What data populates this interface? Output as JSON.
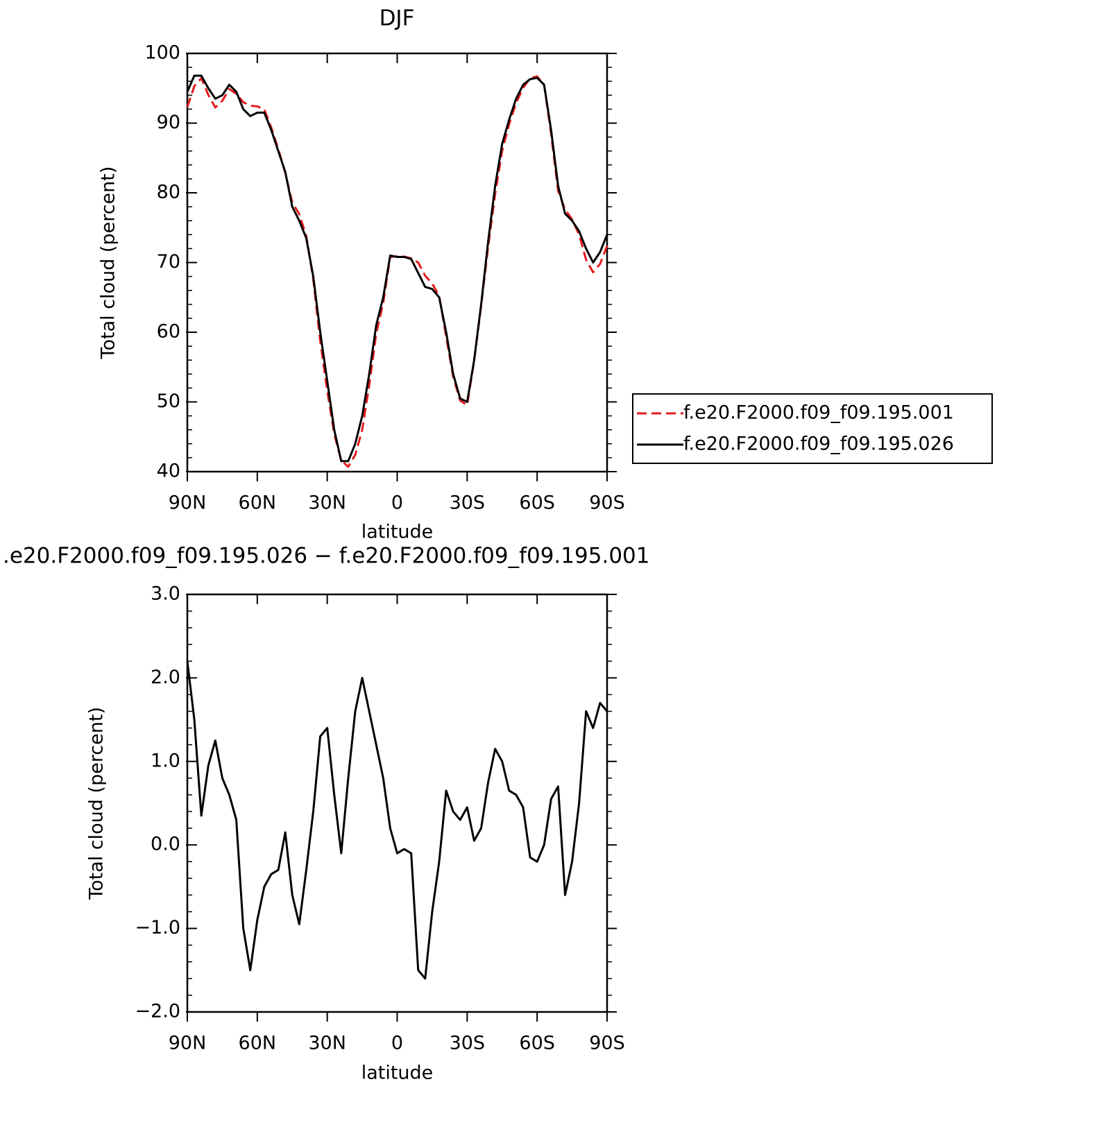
{
  "chart_data": [
    {
      "type": "line",
      "title": "DJF",
      "xlabel": "latitude",
      "ylabel": "Total cloud (percent)",
      "x": [
        90,
        87,
        84,
        81,
        78,
        75,
        72,
        69,
        66,
        63,
        60,
        57,
        54,
        51,
        48,
        45,
        42,
        39,
        36,
        33,
        30,
        27,
        24,
        21,
        18,
        15,
        12,
        9,
        6,
        3,
        0,
        -3,
        -6,
        -9,
        -12,
        -15,
        -18,
        -21,
        -24,
        -27,
        -30,
        -33,
        -36,
        -39,
        -42,
        -45,
        -48,
        -51,
        -54,
        -57,
        -60,
        -63,
        -66,
        -69,
        -72,
        -75,
        -78,
        -81,
        -84,
        -87,
        -90
      ],
      "xlim": [
        90,
        -90
      ],
      "xticks": [
        {
          "value": 90,
          "label": "90N"
        },
        {
          "value": 60,
          "label": "60N"
        },
        {
          "value": 30,
          "label": "30N"
        },
        0,
        {
          "value": -30,
          "label": "30S"
        },
        {
          "value": -60,
          "label": "60S"
        },
        {
          "value": -90,
          "label": "90S"
        }
      ],
      "ylim": [
        40,
        100
      ],
      "yticks": [
        40,
        50,
        60,
        70,
        80,
        90,
        100
      ],
      "legend": "right",
      "series": [
        {
          "name": "f.e20.F2000.f09_f09.195.001",
          "color": "#e31a1c",
          "dash": "dashed",
          "values": [
            92.3,
            95.3,
            96.45,
            94.05,
            92.25,
            93.2,
            94.9,
            94.2,
            93,
            92.5,
            92.4,
            92,
            89.35,
            86.3,
            82.85,
            78.6,
            76.95,
            73.8,
            67.6,
            58.7,
            51.6,
            45.4,
            41.6,
            40.7,
            42.4,
            46,
            52.4,
            59.8,
            64.2,
            70.8,
            70.9,
            70.85,
            70.6,
            70,
            68.1,
            67,
            65.2,
            59.35,
            53.6,
            50.2,
            49.55,
            55.95,
            63.8,
            72.25,
            79.85,
            86,
            89.85,
            92.9,
            95.05,
            96.45,
            96.7,
            95.5,
            88.45,
            80.3,
            77.6,
            76.2,
            74,
            70.4,
            68.6,
            69.8,
            72.4
          ]
        },
        {
          "name": "f.e20.F2000.f09_f09.195.026",
          "color": "#000000",
          "dash": "solid",
          "values": [
            94.5,
            96.8,
            96.8,
            95,
            93.5,
            94,
            95.5,
            94.5,
            92,
            91,
            91.5,
            91.5,
            89,
            86,
            83,
            78,
            76,
            73.5,
            68,
            60,
            53,
            46,
            41.5,
            41.5,
            44,
            48,
            54,
            61,
            65,
            71,
            70.8,
            70.8,
            70.5,
            68.5,
            66.5,
            66.2,
            65,
            60,
            54,
            50.5,
            50,
            56,
            64,
            73,
            81,
            87,
            90.5,
            93.5,
            95.5,
            96.3,
            96.5,
            95.5,
            89,
            81,
            77,
            76,
            74.5,
            72,
            70,
            71.5,
            74
          ]
        }
      ]
    },
    {
      "type": "line",
      "title": ".e20.F2000.f09_f09.195.026 − f.e20.F2000.f09_f09.195.001",
      "xlabel": "latitude",
      "ylabel": "Total cloud (percent)",
      "x": [
        90,
        87,
        84,
        81,
        78,
        75,
        72,
        69,
        66,
        63,
        60,
        57,
        54,
        51,
        48,
        45,
        42,
        39,
        36,
        33,
        30,
        27,
        24,
        21,
        18,
        15,
        12,
        9,
        6,
        3,
        0,
        -3,
        -6,
        -9,
        -12,
        -15,
        -18,
        -21,
        -24,
        -27,
        -30,
        -33,
        -36,
        -39,
        -42,
        -45,
        -48,
        -51,
        -54,
        -57,
        -60,
        -63,
        -66,
        -69,
        -72,
        -75,
        -78,
        -81,
        -84,
        -87,
        -90
      ],
      "xlim": [
        90,
        -90
      ],
      "xticks": [
        {
          "value": 90,
          "label": "90N"
        },
        {
          "value": 60,
          "label": "60N"
        },
        {
          "value": 30,
          "label": "30N"
        },
        0,
        {
          "value": -30,
          "label": "30S"
        },
        {
          "value": -60,
          "label": "60S"
        },
        {
          "value": -90,
          "label": "90S"
        }
      ],
      "ylim": [
        -2,
        3
      ],
      "yticks": [
        {
          "value": -2,
          "label": "−2.0"
        },
        {
          "value": -1,
          "label": "−1.0"
        },
        {
          "value": 0,
          "label": "0.0"
        },
        {
          "value": 1,
          "label": "1.0"
        },
        {
          "value": 2,
          "label": "2.0"
        },
        {
          "value": 3,
          "label": "3.0"
        }
      ],
      "color": "#000000",
      "values": [
        2.2,
        1.5,
        0.35,
        0.95,
        1.25,
        0.8,
        0.6,
        0.3,
        -1.0,
        -1.5,
        -0.9,
        -0.5,
        -0.35,
        -0.3,
        0.15,
        -0.6,
        -0.95,
        -0.3,
        0.4,
        1.3,
        1.4,
        0.6,
        -0.1,
        0.8,
        1.6,
        2.0,
        1.6,
        1.2,
        0.8,
        0.2,
        -0.1,
        -0.05,
        -0.1,
        -1.5,
        -1.6,
        -0.8,
        -0.2,
        0.65,
        0.4,
        0.3,
        0.45,
        0.05,
        0.2,
        0.75,
        1.15,
        1.0,
        0.65,
        0.6,
        0.45,
        -0.15,
        -0.2,
        0.0,
        0.55,
        0.7,
        -0.6,
        -0.2,
        0.5,
        1.6,
        1.4,
        1.7,
        1.6
      ]
    }
  ]
}
